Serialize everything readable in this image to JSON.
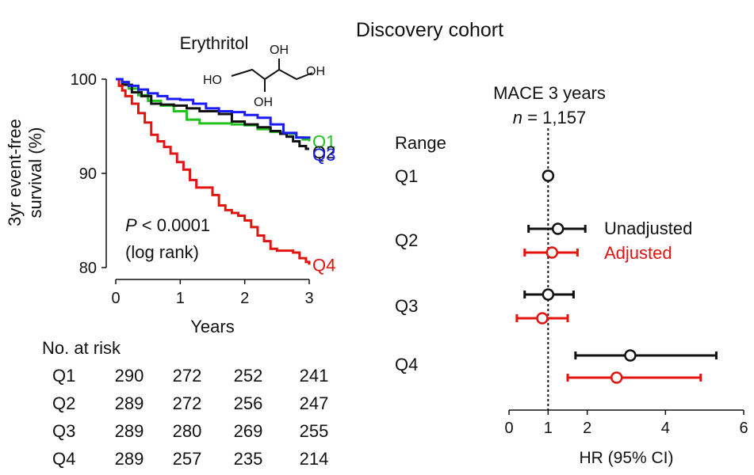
{
  "figure_title": "Discovery cohort",
  "compound": {
    "name": "Erythritol",
    "groups": [
      "HO",
      "OH",
      "OH",
      "OH"
    ]
  },
  "colors": {
    "Q1": "#22c21f",
    "Q2": "#111111",
    "Q3": "#1a1aff",
    "Q4": "#e3140f",
    "adjusted": "#e3140f",
    "unadjusted": "#111111"
  },
  "chart_data": [
    {
      "type": "line",
      "subtype": "kaplan-meier",
      "ylabel": "3yr event-free survival (%)",
      "ylabel_lines": [
        "3yr event-free",
        "survival (%)"
      ],
      "xlabel": "Years",
      "xlim": [
        0,
        3
      ],
      "ylim": [
        80,
        100
      ],
      "xticks": [
        "0",
        "1",
        "2",
        "3"
      ],
      "yticks": [
        "80",
        "90",
        "100"
      ],
      "annotation": {
        "p_label": "P",
        "p_value": " < 0.0001",
        "test": "(log rank)"
      },
      "series": [
        {
          "name": "Q1",
          "label": "Q1",
          "x": [
            0,
            0.1,
            0.2,
            0.35,
            0.5,
            0.7,
            0.9,
            1.1,
            1.3,
            1.5,
            1.8,
            2.0,
            2.2,
            2.4,
            2.6,
            2.8,
            2.9,
            3.0
          ],
          "y": [
            100,
            99.6,
            99.0,
            98.3,
            97.7,
            97.2,
            96.6,
            95.7,
            95.3,
            95.3,
            95.2,
            95.1,
            94.7,
            94.4,
            94.2,
            93.8,
            93.6,
            93.4
          ]
        },
        {
          "name": "Q2",
          "label": "Q2",
          "x": [
            0,
            0.1,
            0.25,
            0.4,
            0.55,
            0.7,
            0.9,
            1.1,
            1.3,
            1.6,
            1.8,
            2.0,
            2.2,
            2.4,
            2.55,
            2.65,
            2.75,
            2.85,
            2.95,
            3.0
          ],
          "y": [
            100,
            99.4,
            98.6,
            98.2,
            97.4,
            97.3,
            97.2,
            96.9,
            96.6,
            96.3,
            95.5,
            95.2,
            94.9,
            94.5,
            94.2,
            93.9,
            93.4,
            92.9,
            92.6,
            92.6
          ]
        },
        {
          "name": "Q3",
          "label": "Q3",
          "x": [
            0,
            0.1,
            0.2,
            0.35,
            0.5,
            0.65,
            0.8,
            1.0,
            1.2,
            1.4,
            1.6,
            1.8,
            2.0,
            2.2,
            2.4,
            2.6,
            2.8,
            3.0
          ],
          "y": [
            100,
            99.7,
            99.3,
            98.9,
            98.5,
            98.2,
            97.9,
            97.8,
            97.4,
            96.9,
            96.6,
            96.5,
            96.2,
            95.9,
            95.2,
            94.3,
            93.8,
            93.7
          ]
        },
        {
          "name": "Q4",
          "label": "Q4",
          "x": [
            0,
            0.05,
            0.1,
            0.15,
            0.25,
            0.35,
            0.45,
            0.55,
            0.65,
            0.75,
            0.85,
            0.95,
            1.05,
            1.15,
            1.25,
            1.35,
            1.5,
            1.6,
            1.7,
            1.8,
            1.9,
            2.0,
            2.1,
            2.2,
            2.3,
            2.4,
            2.5,
            2.6,
            2.75,
            2.85,
            2.95,
            3.0
          ],
          "y": [
            100,
            99.3,
            98.8,
            98.2,
            97.4,
            96.4,
            95.4,
            94.1,
            93.4,
            92.8,
            92.1,
            91.2,
            90.4,
            89.3,
            88.5,
            88.5,
            87.7,
            86.6,
            86.1,
            85.8,
            85.5,
            85.0,
            84.3,
            83.4,
            82.8,
            82.0,
            81.8,
            81.8,
            81.6,
            81.0,
            80.6,
            80.3
          ]
        }
      ],
      "risk_table": {
        "title": "No. at risk",
        "rows": [
          {
            "group": "Q1",
            "values": [
              "290",
              "272",
              "252",
              "241"
            ]
          },
          {
            "group": "Q2",
            "values": [
              "289",
              "272",
              "256",
              "247"
            ]
          },
          {
            "group": "Q3",
            "values": [
              "289",
              "280",
              "269",
              "255"
            ]
          },
          {
            "group": "Q4",
            "values": [
              "289",
              "257",
              "235",
              "214"
            ]
          }
        ]
      }
    },
    {
      "type": "forest",
      "title": "MACE 3 years",
      "subtitle_n_label": "n",
      "subtitle_n_value": " = 1,157",
      "category_header": "Range",
      "categories": [
        "Q1",
        "Q2",
        "Q3",
        "Q4"
      ],
      "xlabel": "HR (95% CI)",
      "xlim": [
        0,
        6
      ],
      "xticks": [
        "0",
        "1",
        "2",
        "4",
        "6"
      ],
      "reference_line": 1,
      "legend": [
        "Unadjusted",
        "Adjusted"
      ],
      "series": [
        {
          "name": "Unadjusted",
          "points": [
            {
              "category": "Q1",
              "hr": 1.0,
              "low": 1.0,
              "high": 1.0
            },
            {
              "category": "Q2",
              "hr": 1.25,
              "low": 0.5,
              "high": 1.95
            },
            {
              "category": "Q3",
              "hr": 1.0,
              "low": 0.4,
              "high": 1.65
            },
            {
              "category": "Q4",
              "hr": 3.1,
              "low": 1.7,
              "high": 5.3
            }
          ]
        },
        {
          "name": "Adjusted",
          "points": [
            {
              "category": "Q2",
              "hr": 1.1,
              "low": 0.4,
              "high": 1.75
            },
            {
              "category": "Q3",
              "hr": 0.85,
              "low": 0.2,
              "high": 1.5
            },
            {
              "category": "Q4",
              "hr": 2.75,
              "low": 1.5,
              "high": 4.9
            }
          ]
        }
      ]
    }
  ]
}
